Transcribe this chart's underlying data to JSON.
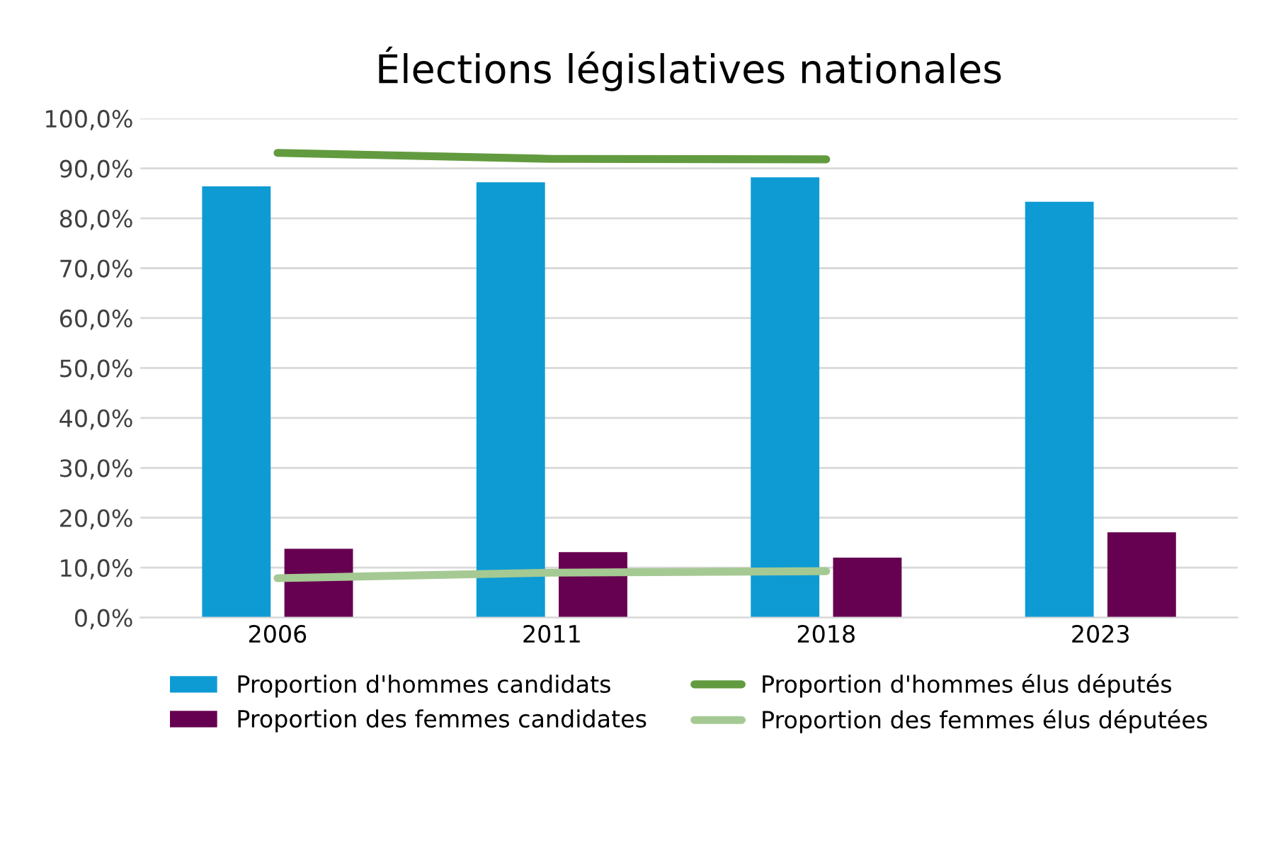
{
  "chart_data": {
    "type": "bar",
    "title": "Élections législatives nationales",
    "categories": [
      "2006",
      "2011",
      "2018",
      "2023"
    ],
    "series": [
      {
        "name": "Proportion d'hommes candidats",
        "color": "#0e9bd4",
        "values": [
          86.4,
          87.2,
          88.2,
          83.3
        ]
      },
      {
        "name": "Proportion des femmes candidates",
        "color": "#660050",
        "values": [
          13.8,
          13.1,
          12.0,
          17.1
        ]
      },
      {
        "name": "Proportion d'hommes élus députés",
        "type": "line",
        "color": "#629b3f",
        "values": [
          93.1,
          91.9,
          91.8,
          null
        ]
      },
      {
        "name": "Proportion des femmes élus députées",
        "type": "line",
        "color": "#a5c993",
        "values": [
          7.9,
          9.0,
          9.3,
          null
        ]
      }
    ],
    "ylim": [
      0,
      100
    ],
    "yticks": [
      {
        "value": 0,
        "label": "0,0%"
      },
      {
        "value": 10,
        "label": "10,0%"
      },
      {
        "value": 20,
        "label": "20,0%"
      },
      {
        "value": 30,
        "label": "30,0%"
      },
      {
        "value": 40,
        "label": "40,0%"
      },
      {
        "value": 50,
        "label": "50,0%"
      },
      {
        "value": 60,
        "label": "60,0%"
      },
      {
        "value": 70,
        "label": "70,0%"
      },
      {
        "value": 80,
        "label": "80,0%"
      },
      {
        "value": 90,
        "label": "90,0%"
      },
      {
        "value": 100,
        "label": "100,0%"
      }
    ],
    "grid": "y",
    "legend": "bottom"
  }
}
